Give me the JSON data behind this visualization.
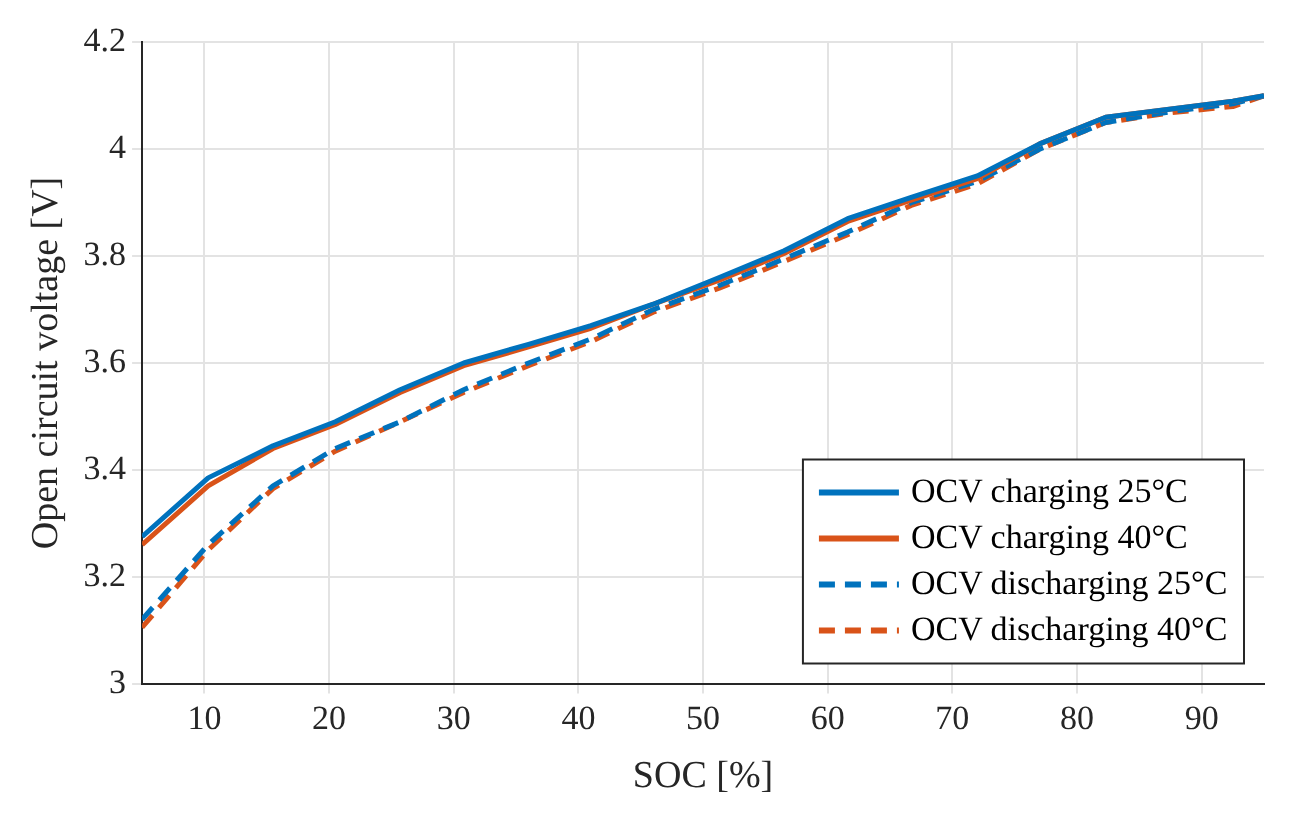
{
  "chart_data": {
    "type": "line",
    "xlabel": "SOC [%]",
    "ylabel": "Open circuit voltage [V]",
    "xlim": [
      5,
      95
    ],
    "xticks": [
      10,
      20,
      30,
      40,
      50,
      60,
      70,
      80,
      90
    ],
    "ylim": [
      3,
      4.2
    ],
    "yticks": [
      3,
      3.2,
      3.4,
      3.6,
      3.8,
      4,
      4.2
    ],
    "grid": true,
    "legend": "bottom right",
    "marker": "none",
    "series": [
      {
        "name": "OCV charging 25°C",
        "color": "#0072bd",
        "line_style": "solid",
        "x": [
          5,
          10.3,
          15.5,
          20.5,
          25.7,
          30.8,
          36,
          41,
          46,
          51.3,
          56.5,
          61.6,
          66.7,
          72,
          77,
          82.3,
          87.4,
          92.5,
          95
        ],
        "values": [
          3.275,
          3.385,
          3.445,
          3.49,
          3.55,
          3.6,
          3.635,
          3.67,
          3.71,
          3.76,
          3.81,
          3.87,
          3.91,
          3.95,
          4.01,
          4.06,
          4.075,
          4.09,
          4.1
        ]
      },
      {
        "name": "OCV charging 40°C",
        "color": "#d95319",
        "line_style": "solid",
        "x": [
          5,
          10.3,
          15.5,
          20.5,
          25.7,
          30.8,
          36,
          41,
          46,
          51.3,
          56.5,
          61.6,
          66.7,
          72,
          77,
          82.3,
          87.4,
          92.5,
          95
        ],
        "values": [
          3.26,
          3.37,
          3.44,
          3.485,
          3.545,
          3.595,
          3.63,
          3.665,
          3.71,
          3.755,
          3.805,
          3.865,
          3.905,
          3.945,
          4.01,
          4.06,
          4.075,
          4.09,
          4.1
        ]
      },
      {
        "name": "OCV discharging 25°C",
        "color": "#0072bd",
        "line_style": "dashed",
        "x": [
          5,
          10.3,
          15.5,
          20.5,
          25.7,
          30.8,
          36,
          41,
          46,
          51.3,
          56.5,
          61.6,
          66.7,
          72,
          77,
          82.3,
          87.4,
          92.5,
          95
        ],
        "values": [
          3.12,
          3.26,
          3.37,
          3.44,
          3.49,
          3.55,
          3.6,
          3.645,
          3.7,
          3.745,
          3.795,
          3.845,
          3.9,
          3.94,
          4.0,
          4.05,
          4.07,
          4.085,
          4.1
        ]
      },
      {
        "name": "OCV discharging 40°C",
        "color": "#d95319",
        "line_style": "dashed",
        "x": [
          5,
          10.3,
          15.5,
          20.5,
          25.7,
          30.8,
          36,
          41,
          46,
          51.3,
          56.5,
          61.6,
          66.7,
          72,
          77,
          82.3,
          87.4,
          92.5,
          95
        ],
        "values": [
          3.105,
          3.25,
          3.365,
          3.435,
          3.49,
          3.545,
          3.595,
          3.64,
          3.695,
          3.74,
          3.79,
          3.84,
          3.895,
          3.935,
          4.0,
          4.05,
          4.068,
          4.08,
          4.1
        ]
      }
    ]
  }
}
